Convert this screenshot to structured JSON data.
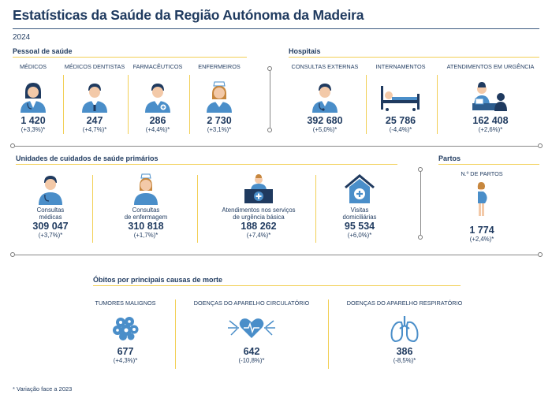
{
  "title": "Estatísticas da Saúde da Região Autónoma da Madeira",
  "year": "2024",
  "pessoal": {
    "heading": "Pessoal de saúde",
    "items": [
      {
        "label": "MÉDICOS",
        "value": "1 420",
        "change": "(+3,3%)*",
        "icon": "doctor-female-icon"
      },
      {
        "label": "MÉDICOS DENTISTAS",
        "value": "247",
        "change": "(+4,7%)*",
        "icon": "dentist-icon"
      },
      {
        "label": "FARMACÊUTICOS",
        "value": "286",
        "change": "(+4,4%)*",
        "icon": "pharmacist-icon"
      },
      {
        "label": "ENFERMEIROS",
        "value": "2 730",
        "change": "(+3,1%)*",
        "icon": "nurse-icon"
      }
    ]
  },
  "hospitais": {
    "heading": "Hospitais",
    "items": [
      {
        "label": "CONSULTAS EXTERNAS",
        "value": "392 680",
        "change": "(+5,0%)*",
        "icon": "doctor-icon"
      },
      {
        "label": "INTERNAMENTOS",
        "value": "25 786",
        "change": "(-4,4%)*",
        "icon": "hospital-bed-icon"
      },
      {
        "label": "ATENDIMENTOS EM URGÊNCIA",
        "value": "162 408",
        "change": "(+2,6%)*",
        "icon": "emergency-desk-icon"
      }
    ]
  },
  "primarios": {
    "heading": "Unidades de cuidados de saúde primários",
    "items": [
      {
        "label_l1": "Consultas",
        "label_l2": "médicas",
        "value": "309 047",
        "change": "(+3,7%)*",
        "icon": "doctor-head-icon"
      },
      {
        "label_l1": "Consultas",
        "label_l2": "de enfermagem",
        "value": "310 818",
        "change": "(+1,7%)*",
        "icon": "nurse-head-icon"
      },
      {
        "label_l1": "Atendimentos nos serviços",
        "label_l2": "de urgência básica",
        "value": "188 262",
        "change": "(+7,4%)*",
        "icon": "urgent-care-desk-icon"
      },
      {
        "label_l1": "Visitas",
        "label_l2": "domiciliárias",
        "value": "95 534",
        "change": "(+6,0%)*",
        "icon": "home-care-icon"
      }
    ]
  },
  "partos": {
    "heading": "Partos",
    "label": "N.º DE PARTOS",
    "value": "1 774",
    "change": "(+2,4%)*",
    "icon": "pregnant-woman-icon"
  },
  "obitos": {
    "heading": "Óbitos por principais causas de morte",
    "items": [
      {
        "label": "TUMORES MALIGNOS",
        "value": "677",
        "change": "(+4,3%)*",
        "icon": "tumor-cells-icon"
      },
      {
        "label": "DOENÇAS DO APARELHO CIRCULATÓRIO",
        "value": "642",
        "change": "(-10,8%)*",
        "icon": "heart-vessels-icon"
      },
      {
        "label": "DOENÇAS DO APARELHO RESPIRATÓRIO",
        "value": "386",
        "change": "(-8,5%)*",
        "icon": "lungs-icon"
      }
    ]
  },
  "footnote": "* Variação face a 2023",
  "colors": {
    "navy": "#1f3a5f",
    "icon_blue": "#4a8ec9",
    "skin": "#f3c9a8",
    "accent_yellow": "#f2cf55"
  }
}
